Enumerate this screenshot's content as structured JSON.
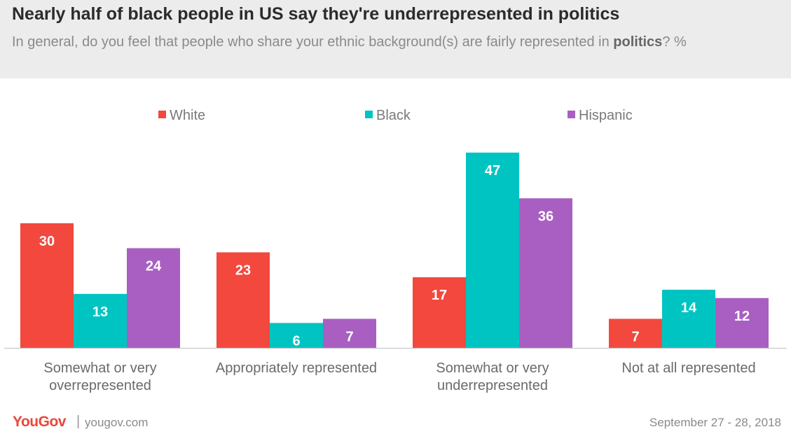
{
  "header": {
    "title": "Nearly half of black people in US say they're underrepresented in politics",
    "subtitle_pre": "In general, do you feel that people who share your ethnic background(s) are fairly represented in ",
    "subtitle_bold": "politics",
    "subtitle_post": "? %"
  },
  "footer": {
    "logo": "YouGov",
    "separator": "|",
    "url": "yougov.com",
    "date": "September 27 - 28, 2018"
  },
  "chart_data": {
    "type": "bar",
    "title": "Nearly half of black people in US say they're underrepresented in politics",
    "categories": [
      [
        "Somewhat or very",
        "overrepresented"
      ],
      [
        "Appropriately represented"
      ],
      [
        "Somewhat or very",
        "underrepresented"
      ],
      [
        "Not at all represented"
      ]
    ],
    "series": [
      {
        "name": "White",
        "color": "#f2483d",
        "values": [
          30,
          23,
          17,
          7
        ]
      },
      {
        "name": "Black",
        "color": "#00c4c2",
        "values": [
          13,
          6,
          47,
          14
        ]
      },
      {
        "name": "Hispanic",
        "color": "#a95fc1",
        "values": [
          24,
          7,
          36,
          12
        ]
      }
    ],
    "ylim": [
      0,
      47
    ],
    "grid": false,
    "legend_position": "top-center",
    "data_labels": true
  }
}
